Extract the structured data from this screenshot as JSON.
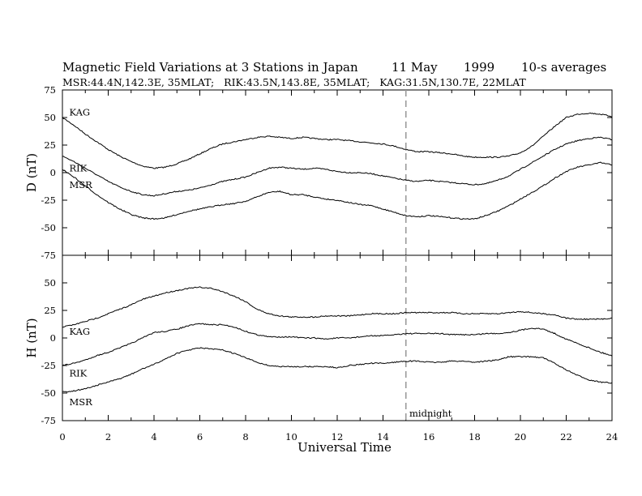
{
  "figure": {
    "title": "Magnetic Field Variations at 3 Stations in Japan",
    "date": "11 May",
    "year": "1999",
    "averaging": "10-s averages",
    "subtitle": "MSR:44.4N,142.3E, 35MLAT;   RIK:43.5N,143.8E, 35MLAT;   KAG:31.5N,130.7E, 22MLAT",
    "xlabel": "Universal Time",
    "marker_label": "midnight"
  },
  "chart_data": [
    {
      "type": "line",
      "panel": "top",
      "ylabel": "D (nT)",
      "ylim": [
        -75,
        75
      ],
      "yticks": [
        "75",
        "50",
        "25",
        "0",
        "-25",
        "-50",
        "-75"
      ],
      "xlim": [
        0,
        24
      ],
      "xticks": [
        "0",
        "2",
        "4",
        "6",
        "8",
        "10",
        "12",
        "14",
        "16",
        "18",
        "20",
        "22",
        "24"
      ],
      "vline_x": 15,
      "series": [
        {
          "name": "KAG",
          "x": [
            0,
            0.5,
            1,
            1.5,
            2,
            2.5,
            3,
            3.5,
            4,
            4.5,
            5,
            5.5,
            6,
            6.5,
            7,
            7.5,
            8,
            8.5,
            9,
            9.5,
            10,
            10.5,
            11,
            11.5,
            12,
            12.5,
            13,
            13.5,
            14,
            14.5,
            15,
            15.5,
            16,
            16.5,
            17,
            17.5,
            18,
            18.5,
            19,
            19.5,
            20,
            20.5,
            21,
            21.5,
            22,
            22.5,
            23,
            23.5,
            24
          ],
          "values": [
            50,
            43,
            35,
            28,
            21,
            15,
            10,
            6,
            4,
            5,
            8,
            12,
            17,
            22,
            26,
            28,
            30,
            32,
            33,
            32,
            31,
            32,
            31,
            30,
            30,
            29,
            28,
            27,
            26,
            24,
            21,
            19,
            19,
            18,
            17,
            15,
            14,
            14,
            14,
            15,
            18,
            24,
            33,
            42,
            50,
            53,
            54,
            53,
            51
          ]
        },
        {
          "name": "RIK",
          "x": [
            0,
            0.5,
            1,
            1.5,
            2,
            2.5,
            3,
            3.5,
            4,
            4.5,
            5,
            5.5,
            6,
            6.5,
            7,
            7.5,
            8,
            8.5,
            9,
            9.5,
            10,
            10.5,
            11,
            11.5,
            12,
            12.5,
            13,
            13.5,
            14,
            14.5,
            15,
            15.5,
            16,
            16.5,
            17,
            17.5,
            18,
            18.5,
            19,
            19.5,
            20,
            20.5,
            21,
            21.5,
            22,
            22.5,
            23,
            23.5,
            24
          ],
          "values": [
            15,
            10,
            4,
            -2,
            -8,
            -13,
            -17,
            -20,
            -21,
            -19,
            -17,
            -16,
            -14,
            -11,
            -8,
            -6,
            -4,
            0,
            4,
            5,
            4,
            3,
            4,
            3,
            1,
            0,
            0,
            -1,
            -3,
            -5,
            -7,
            -8,
            -7,
            -8,
            -9,
            -10,
            -11,
            -10,
            -7,
            -3,
            3,
            9,
            15,
            21,
            26,
            29,
            31,
            32,
            30
          ]
        },
        {
          "name": "MSR",
          "x": [
            0,
            0.5,
            1,
            1.5,
            2,
            2.5,
            3,
            3.5,
            4,
            4.5,
            5,
            5.5,
            6,
            6.5,
            7,
            7.5,
            8,
            8.5,
            9,
            9.5,
            10,
            10.5,
            11,
            11.5,
            12,
            12.5,
            13,
            13.5,
            14,
            14.5,
            15,
            15.5,
            16,
            16.5,
            17,
            17.5,
            18,
            18.5,
            19,
            19.5,
            20,
            20.5,
            21,
            21.5,
            22,
            22.5,
            23,
            23.5,
            24
          ],
          "values": [
            3,
            -4,
            -12,
            -20,
            -27,
            -33,
            -38,
            -41,
            -42,
            -41,
            -38,
            -35,
            -33,
            -31,
            -29,
            -28,
            -26,
            -22,
            -18,
            -17,
            -20,
            -20,
            -22,
            -24,
            -25,
            -27,
            -29,
            -30,
            -33,
            -36,
            -39,
            -40,
            -39,
            -40,
            -41,
            -42,
            -42,
            -39,
            -35,
            -30,
            -24,
            -18,
            -12,
            -5,
            1,
            5,
            7,
            9,
            7
          ]
        }
      ]
    },
    {
      "type": "line",
      "panel": "bottom",
      "ylabel": "H (nT)",
      "ylim": [
        -75,
        75
      ],
      "yticks": [
        "50",
        "25",
        "0",
        "-25",
        "-50",
        "-75"
      ],
      "xlim": [
        0,
        24
      ],
      "xticks": [
        "0",
        "2",
        "4",
        "6",
        "8",
        "10",
        "12",
        "14",
        "16",
        "18",
        "20",
        "22",
        "24"
      ],
      "vline_x": 15,
      "series": [
        {
          "name": "KAG",
          "x": [
            0,
            0.5,
            1,
            1.5,
            2,
            2.5,
            3,
            3.5,
            4,
            4.5,
            5,
            5.5,
            6,
            6.5,
            7,
            7.5,
            8,
            8.5,
            9,
            9.5,
            10,
            10.5,
            11,
            11.5,
            12,
            12.5,
            13,
            13.5,
            14,
            14.5,
            15,
            15.5,
            16,
            16.5,
            17,
            17.5,
            18,
            18.5,
            19,
            19.5,
            20,
            20.5,
            21,
            21.5,
            22,
            22.5,
            23,
            23.5,
            24
          ],
          "values": [
            10,
            12,
            15,
            18,
            22,
            26,
            30,
            35,
            38,
            41,
            43,
            45,
            46,
            45,
            42,
            38,
            33,
            26,
            22,
            20,
            19,
            19,
            19,
            20,
            20,
            20,
            21,
            22,
            22,
            22,
            23,
            23,
            23,
            23,
            23,
            22,
            22,
            22,
            22,
            23,
            24,
            23,
            22,
            21,
            18,
            17,
            17,
            17,
            18
          ]
        },
        {
          "name": "RIK",
          "x": [
            0,
            0.5,
            1,
            1.5,
            2,
            2.5,
            3,
            3.5,
            4,
            4.5,
            5,
            5.5,
            6,
            6.5,
            7,
            7.5,
            8,
            8.5,
            9,
            9.5,
            10,
            10.5,
            11,
            11.5,
            12,
            12.5,
            13,
            13.5,
            14,
            14.5,
            15,
            15.5,
            16,
            16.5,
            17,
            17.5,
            18,
            18.5,
            19,
            19.5,
            20,
            20.5,
            21,
            21.5,
            22,
            22.5,
            23,
            23.5,
            24
          ],
          "values": [
            -25,
            -23,
            -20,
            -16,
            -13,
            -9,
            -5,
            0,
            5,
            6,
            8,
            11,
            13,
            12,
            12,
            10,
            6,
            3,
            1,
            1,
            1,
            0,
            0,
            -1,
            0,
            0,
            1,
            2,
            2,
            3,
            4,
            4,
            4,
            4,
            3,
            3,
            3,
            4,
            4,
            5,
            7,
            9,
            8,
            4,
            -1,
            -5,
            -9,
            -13,
            -16
          ]
        },
        {
          "name": "MSR",
          "x": [
            0,
            0.5,
            1,
            1.5,
            2,
            2.5,
            3,
            3.5,
            4,
            4.5,
            5,
            5.5,
            6,
            6.5,
            7,
            7.5,
            8,
            8.5,
            9,
            9.5,
            10,
            10.5,
            11,
            11.5,
            12,
            12.5,
            13,
            13.5,
            14,
            14.5,
            15,
            15.5,
            16,
            16.5,
            17,
            17.5,
            18,
            18.5,
            19,
            19.5,
            20,
            20.5,
            21,
            21.5,
            22,
            22.5,
            23,
            23.5,
            24
          ],
          "values": [
            -49,
            -48,
            -46,
            -43,
            -40,
            -37,
            -33,
            -28,
            -24,
            -19,
            -14,
            -11,
            -9,
            -10,
            -11,
            -14,
            -18,
            -22,
            -25,
            -26,
            -26,
            -26,
            -26,
            -26,
            -27,
            -25,
            -24,
            -23,
            -23,
            -22,
            -21,
            -21,
            -22,
            -22,
            -21,
            -21,
            -22,
            -21,
            -20,
            -17,
            -17,
            -17,
            -18,
            -23,
            -29,
            -34,
            -38,
            -40,
            -41
          ]
        }
      ]
    }
  ]
}
